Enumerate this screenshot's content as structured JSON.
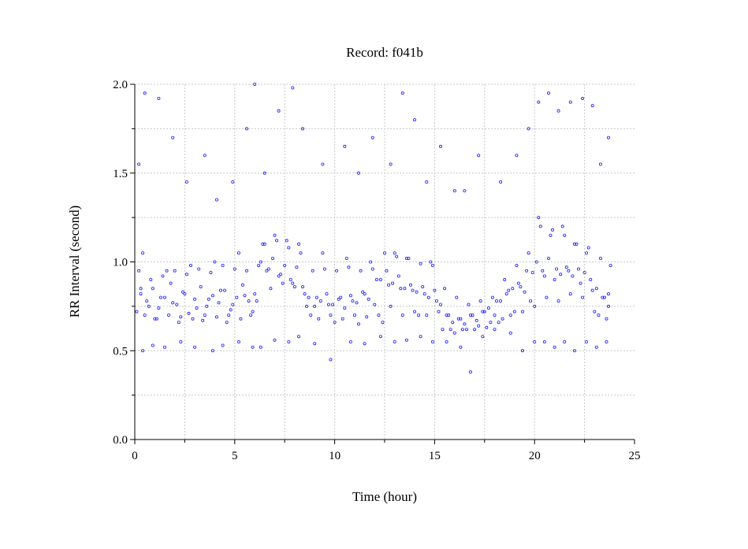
{
  "chart_data": {
    "type": "scatter",
    "title": "Record:  f041b",
    "xlabel": "Time (hour)",
    "ylabel": "RR Interval (second)",
    "xlim": [
      0,
      25
    ],
    "ylim": [
      0,
      2
    ],
    "xticks": [
      "0",
      "5",
      "10",
      "15",
      "20",
      "25"
    ],
    "yticks": [
      "0.0",
      "0.5",
      "1.0",
      "1.5",
      "2.0"
    ],
    "grid": true,
    "marker": "open-circle",
    "color": "#1a1aff",
    "series": [
      {
        "x": [
          0.1,
          0.3,
          0.6,
          0.9,
          1.2,
          1.5,
          1.8,
          2.1,
          2.4,
          2.7,
          3.0,
          3.3,
          3.6,
          3.9,
          4.2,
          4.5,
          4.8,
          5.1,
          5.4,
          5.7,
          6.0,
          6.3,
          6.6,
          6.9,
          7.2,
          7.5,
          7.8,
          8.1,
          8.4,
          8.7,
          9.0,
          9.3,
          9.6,
          9.9,
          10.2,
          10.5,
          10.8,
          11.1,
          11.4,
          11.7,
          12.0,
          12.3,
          12.6,
          12.9,
          13.2,
          13.5,
          13.8,
          14.1,
          14.4,
          14.7,
          15.0,
          15.3,
          15.6,
          15.9,
          16.2,
          16.5,
          16.8,
          17.1,
          17.4,
          17.7,
          18.0,
          18.3,
          18.6,
          18.9,
          19.2,
          19.5,
          19.8,
          20.1,
          20.4,
          20.7,
          21.0,
          21.3,
          21.6,
          21.9,
          22.2,
          22.5,
          22.8,
          23.1,
          23.4,
          23.7,
          0.2,
          0.5,
          0.8,
          1.1,
          1.4,
          1.7,
          2.0,
          2.3,
          2.6,
          2.9,
          3.2,
          3.5,
          3.8,
          4.1,
          4.4,
          4.7,
          5.0,
          5.3,
          5.6,
          5.9,
          6.2,
          6.5,
          6.8,
          7.1,
          7.4,
          7.7,
          8.0,
          8.3,
          8.6,
          8.9,
          9.2,
          9.5,
          9.8,
          10.1,
          10.4,
          10.7,
          11.0,
          11.3,
          11.6,
          11.9,
          12.2,
          12.5,
          12.8,
          13.1,
          13.4,
          13.7,
          14.0,
          14.3,
          14.6,
          14.9,
          15.2,
          15.5,
          15.8,
          16.1,
          16.4,
          16.7,
          17.0,
          17.3,
          17.6,
          17.9,
          18.2,
          18.5,
          18.8,
          19.1,
          19.4,
          19.7,
          20.0,
          20.3,
          20.6,
          20.9,
          21.2,
          21.5,
          21.8,
          22.1,
          22.4,
          22.7,
          23.0,
          23.3,
          23.6,
          23.8,
          0.4,
          1.0,
          1.6,
          2.2,
          2.8,
          3.4,
          4.0,
          4.6,
          5.2,
          5.8,
          6.4,
          7.0,
          7.6,
          8.2,
          8.8,
          9.4,
          10.0,
          10.6,
          11.2,
          11.8,
          12.4,
          13.0,
          13.6,
          14.2,
          14.8,
          15.4,
          16.0,
          16.6,
          17.2,
          17.8,
          18.4,
          19.0,
          19.6,
          20.2,
          20.8,
          21.4,
          22.0,
          22.6,
          23.2,
          23.7,
          0.3,
          0.7,
          1.3,
          1.9,
          2.5,
          3.1,
          3.7,
          4.3,
          4.9,
          5.5,
          6.1,
          6.7,
          7.3,
          7.9,
          8.5,
          9.1,
          9.7,
          10.3,
          10.9,
          11.5,
          12.1,
          12.7,
          13.3,
          13.9,
          14.5,
          15.1,
          15.7,
          16.3,
          16.9,
          17.5,
          18.1,
          18.7,
          19.3,
          19.9,
          20.5,
          21.1,
          21.7,
          22.3,
          22.9,
          23.5,
          0.2,
          0.5,
          1.2,
          1.9,
          2.6,
          3.5,
          4.1,
          4.9,
          5.6,
          6.0,
          6.5,
          7.2,
          7.9,
          8.4,
          9.4,
          10.5,
          11.2,
          11.9,
          12.8,
          13.4,
          14.0,
          14.6,
          15.3,
          16.0,
          16.5,
          17.2,
          18.3,
          19.1,
          19.7,
          20.2,
          20.7,
          21.2,
          21.8,
          22.4,
          22.9,
          23.3,
          23.7,
          0.4,
          0.9,
          1.5,
          2.3,
          3.0,
          3.9,
          4.4,
          5.2,
          5.9,
          6.3,
          7.0,
          7.7,
          8.2,
          9.0,
          9.8,
          10.8,
          11.5,
          12.3,
          13.0,
          13.6,
          14.3,
          14.9,
          15.6,
          16.3,
          16.8,
          17.4,
          18.0,
          18.8,
          19.4,
          20.0,
          20.5,
          21.0,
          21.5,
          22.0,
          22.6,
          23.1,
          23.6
        ],
        "y": [
          0.72,
          0.82,
          0.78,
          0.85,
          0.74,
          0.8,
          0.88,
          0.76,
          0.83,
          0.71,
          0.79,
          0.86,
          0.75,
          0.81,
          0.77,
          0.84,
          0.73,
          0.8,
          0.87,
          0.78,
          0.82,
          1.0,
          0.95,
          1.02,
          0.92,
          0.98,
          0.9,
          0.97,
          0.86,
          0.8,
          0.75,
          0.78,
          0.82,
          0.76,
          0.79,
          0.74,
          0.81,
          0.77,
          0.83,
          0.79,
          0.76,
          0.9,
          0.95,
          0.88,
          0.92,
          0.85,
          0.87,
          0.83,
          0.86,
          0.8,
          0.84,
          0.76,
          0.7,
          0.66,
          0.68,
          0.65,
          0.7,
          0.67,
          0.72,
          0.74,
          0.7,
          0.78,
          0.82,
          0.85,
          0.88,
          0.83,
          0.78,
          1.0,
          0.95,
          1.02,
          0.9,
          0.93,
          0.97,
          0.92,
          0.96,
          0.94,
          0.9,
          0.85,
          0.8,
          0.82,
          0.95,
          0.7,
          0.9,
          0.68,
          0.92,
          0.7,
          0.95,
          0.69,
          0.93,
          0.68,
          0.96,
          0.7,
          0.94,
          0.69,
          0.98,
          0.7,
          0.96,
          0.68,
          0.95,
          0.72,
          0.98,
          1.1,
          0.85,
          1.12,
          0.88,
          1.08,
          0.86,
          1.05,
          0.75,
          0.95,
          0.68,
          0.96,
          0.7,
          0.95,
          0.68,
          0.97,
          0.7,
          0.95,
          0.69,
          0.96,
          0.7,
          1.05,
          0.75,
          1.03,
          0.7,
          1.02,
          0.72,
          0.99,
          0.7,
          0.98,
          0.72,
          0.85,
          0.62,
          0.8,
          0.62,
          0.76,
          0.62,
          0.78,
          0.63,
          0.8,
          0.66,
          0.9,
          0.7,
          0.98,
          0.72,
          1.05,
          0.75,
          1.2,
          0.8,
          1.18,
          0.78,
          1.15,
          0.82,
          1.1,
          0.8,
          1.08,
          0.72,
          1.02,
          0.68,
          0.98,
          1.05,
          0.68,
          0.95,
          0.66,
          0.98,
          0.67,
          1.0,
          0.66,
          1.05,
          0.7,
          1.1,
          1.15,
          1.12,
          1.1,
          0.7,
          1.05,
          0.66,
          1.02,
          0.65,
          1.0,
          0.66,
          1.05,
          1.02,
          0.7,
          1.0,
          0.62,
          0.6,
          0.62,
          0.64,
          0.66,
          0.68,
          0.72,
          0.95,
          1.25,
          1.15,
          1.2,
          1.1,
          1.05,
          0.7,
          0.75,
          0.85,
          0.75,
          0.8,
          0.77,
          0.82,
          0.74,
          0.79,
          0.84,
          0.76,
          0.81,
          0.78,
          0.96,
          0.93,
          0.88,
          0.82,
          0.8,
          0.76,
          0.8,
          0.78,
          0.82,
          0.9,
          0.87,
          0.85,
          0.84,
          0.82,
          0.78,
          0.7,
          0.68,
          0.7,
          0.72,
          0.78,
          0.84,
          0.86,
          0.94,
          0.92,
          0.96,
          0.95,
          0.88,
          0.84,
          0.8,
          1.55,
          1.95,
          1.92,
          1.7,
          1.45,
          1.6,
          1.35,
          1.45,
          1.75,
          2.0,
          1.5,
          1.85,
          1.98,
          1.75,
          1.55,
          1.65,
          1.5,
          1.7,
          1.55,
          1.95,
          1.8,
          1.45,
          1.65,
          1.4,
          1.4,
          1.6,
          1.45,
          1.6,
          1.75,
          1.9,
          1.95,
          1.85,
          1.9,
          1.92,
          1.88,
          1.55,
          1.7,
          0.5,
          0.53,
          0.52,
          0.55,
          0.52,
          0.5,
          0.53,
          0.55,
          0.52,
          0.52,
          0.56,
          0.55,
          0.58,
          0.54,
          0.45,
          0.55,
          0.54,
          0.58,
          0.55,
          0.56,
          0.58,
          0.55,
          0.55,
          0.52,
          0.38,
          0.58,
          0.62,
          0.6,
          0.5,
          0.55,
          0.55,
          0.52,
          0.55,
          0.5,
          0.55,
          0.52,
          0.55
        ]
      }
    ]
  }
}
